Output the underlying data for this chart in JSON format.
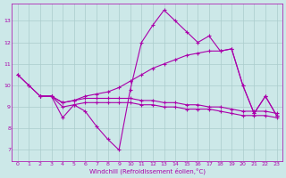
{
  "bg_color": "#cce8e8",
  "line_color": "#aa00aa",
  "grid_color": "#aacccc",
  "xlabel": "Windchill (Refroidissement éolien,°C)",
  "ylim": [
    6.5,
    13.8
  ],
  "xlim": [
    -0.5,
    23.5
  ],
  "yticks": [
    7,
    8,
    9,
    10,
    11,
    12,
    13
  ],
  "xticks": [
    0,
    1,
    2,
    3,
    4,
    5,
    6,
    7,
    8,
    9,
    10,
    11,
    12,
    13,
    14,
    15,
    16,
    17,
    18,
    19,
    20,
    21,
    22,
    23
  ],
  "lines": [
    {
      "x": [
        0,
        1,
        2,
        3,
        4,
        5,
        6,
        7,
        8,
        9,
        10,
        11,
        12,
        13,
        14,
        15,
        16,
        17,
        18,
        19,
        20,
        21,
        22,
        23
      ],
      "y": [
        10.5,
        10.0,
        9.5,
        9.5,
        8.5,
        9.1,
        8.8,
        8.1,
        7.5,
        7.0,
        9.8,
        12.0,
        12.8,
        13.5,
        13.0,
        12.5,
        12.0,
        12.3,
        11.6,
        11.7,
        10.0,
        8.7,
        9.5,
        8.6
      ]
    },
    {
      "x": [
        0,
        1,
        2,
        3,
        4,
        5,
        6,
        7,
        8,
        9,
        10,
        11,
        12,
        13,
        14,
        15,
        16,
        17,
        18,
        19,
        20,
        21,
        22,
        23
      ],
      "y": [
        10.5,
        10.0,
        9.5,
        9.5,
        9.2,
        9.3,
        9.5,
        9.6,
        9.7,
        9.9,
        10.2,
        10.5,
        10.8,
        11.0,
        11.2,
        11.4,
        11.5,
        11.6,
        11.6,
        11.7,
        10.0,
        8.7,
        9.5,
        8.6
      ]
    },
    {
      "x": [
        2,
        3,
        4,
        5,
        6,
        7,
        8,
        9,
        10,
        11,
        12,
        13,
        14,
        15,
        16,
        17,
        18,
        19,
        20,
        21,
        22,
        23
      ],
      "y": [
        9.5,
        9.5,
        9.2,
        9.3,
        9.4,
        9.4,
        9.4,
        9.4,
        9.4,
        9.3,
        9.3,
        9.2,
        9.2,
        9.1,
        9.1,
        9.0,
        9.0,
        8.9,
        8.8,
        8.8,
        8.8,
        8.7
      ]
    },
    {
      "x": [
        2,
        3,
        4,
        5,
        6,
        7,
        8,
        9,
        10,
        11,
        12,
        13,
        14,
        15,
        16,
        17,
        18,
        19,
        20,
        21,
        22,
        23
      ],
      "y": [
        9.5,
        9.5,
        9.0,
        9.1,
        9.2,
        9.2,
        9.2,
        9.2,
        9.2,
        9.1,
        9.1,
        9.0,
        9.0,
        8.9,
        8.9,
        8.9,
        8.8,
        8.7,
        8.6,
        8.6,
        8.6,
        8.5
      ]
    }
  ]
}
